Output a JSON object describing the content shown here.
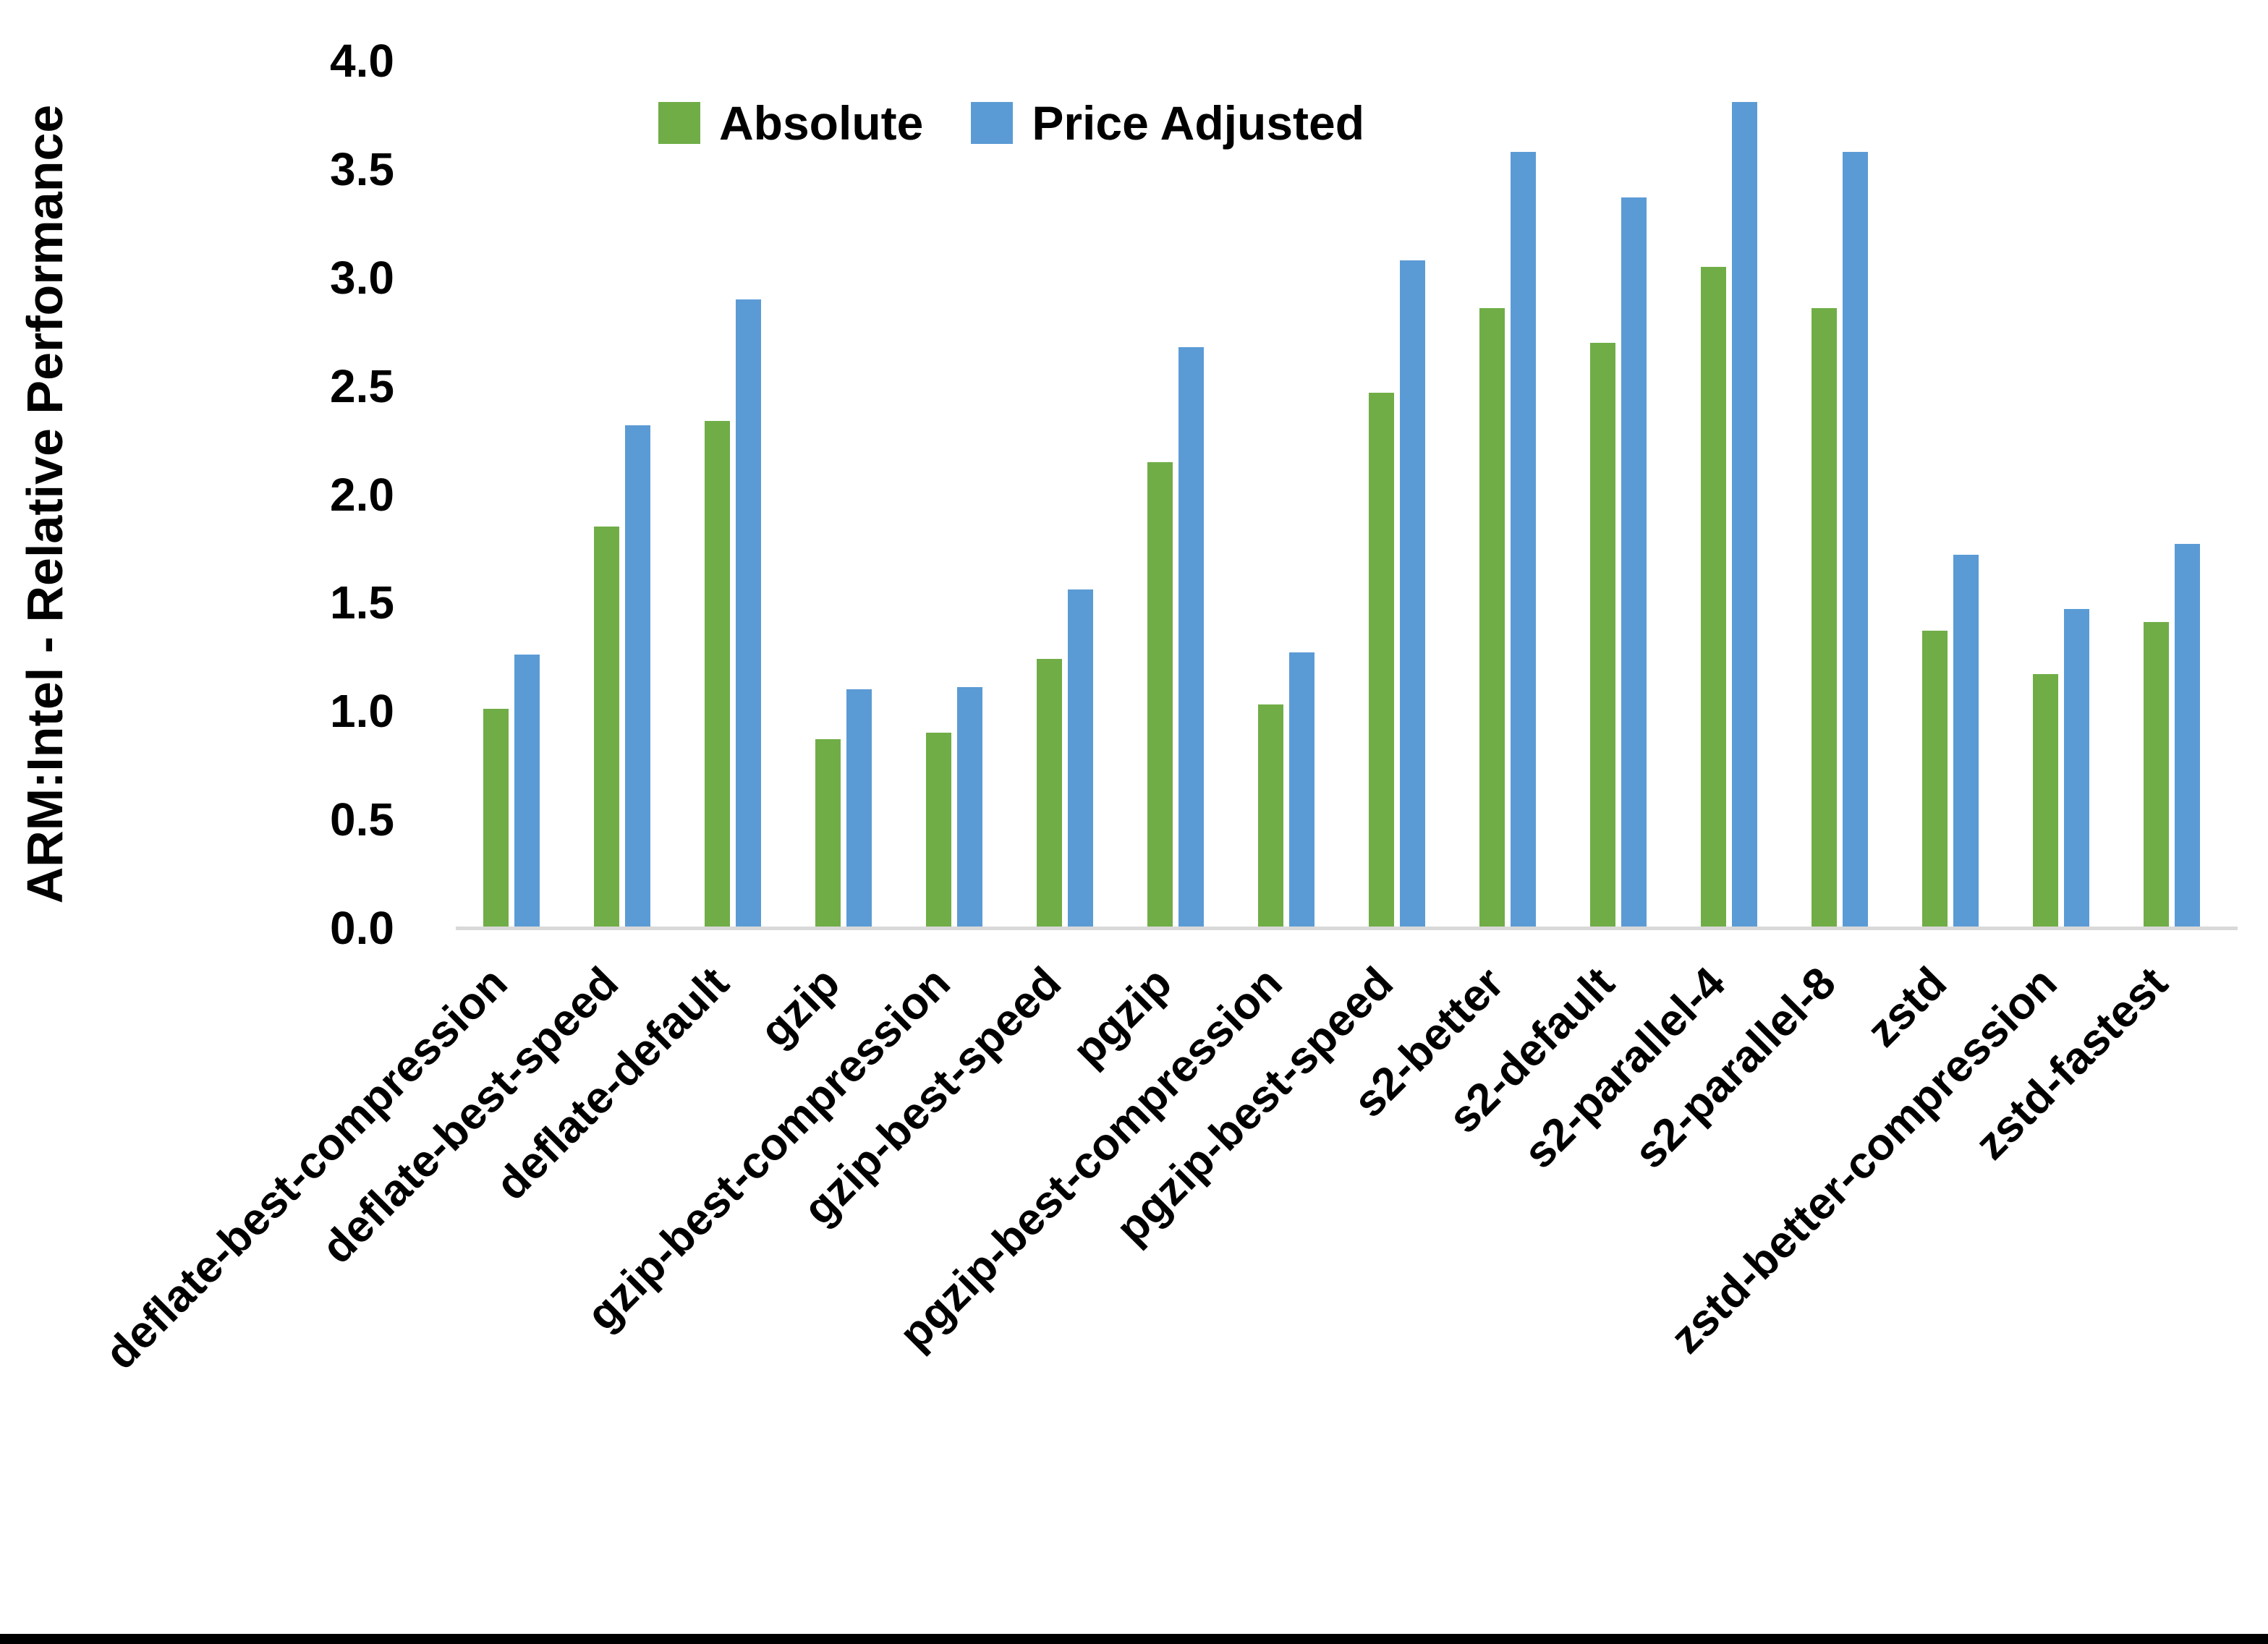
{
  "figure": {
    "y_axis_title": "ARM:Intel - Relative Performance"
  },
  "legend": {
    "position": "top-center",
    "items": [
      {
        "label": "Absolute",
        "color": "#70ad47"
      },
      {
        "label": "Price Adjusted",
        "color": "#5b9bd5"
      }
    ]
  },
  "chart_data": {
    "type": "bar",
    "title": "",
    "xlabel": "",
    "ylabel": "ARM:Intel - Relative Performance",
    "ylim": [
      0,
      4.0
    ],
    "ytick_step": 0.5,
    "ytick_labels": [
      "0.0",
      "0.5",
      "1.0",
      "1.5",
      "2.0",
      "2.5",
      "3.0",
      "3.5",
      "4.0"
    ],
    "grid": false,
    "legend_position": "top-center",
    "axis_line_color": "#d9d9d9",
    "categories": [
      "deflate-best-compression",
      "deflate-best-speed",
      "deflate-default",
      "gzip",
      "gzip-best-compression",
      "gzip-best-speed",
      "pgzip",
      "pgzip-best-compression",
      "pgzip-best-speed",
      "s2-better",
      "s2-default",
      "s2-parallel-4",
      "s2-parallel-8",
      "zstd",
      "zstd-better-compression",
      "zstd-fastest"
    ],
    "series": [
      {
        "name": "Absolute",
        "color": "#70ad47",
        "values": [
          1.01,
          1.85,
          2.34,
          0.87,
          0.9,
          1.24,
          2.15,
          1.03,
          2.47,
          2.86,
          2.7,
          3.05,
          2.86,
          1.37,
          1.17,
          1.41
        ]
      },
      {
        "name": "Price Adjusted",
        "color": "#5b9bd5",
        "values": [
          1.26,
          2.32,
          2.9,
          1.1,
          1.11,
          1.56,
          2.68,
          1.27,
          3.08,
          3.58,
          3.37,
          3.81,
          3.58,
          1.72,
          1.47,
          1.77
        ]
      }
    ]
  }
}
